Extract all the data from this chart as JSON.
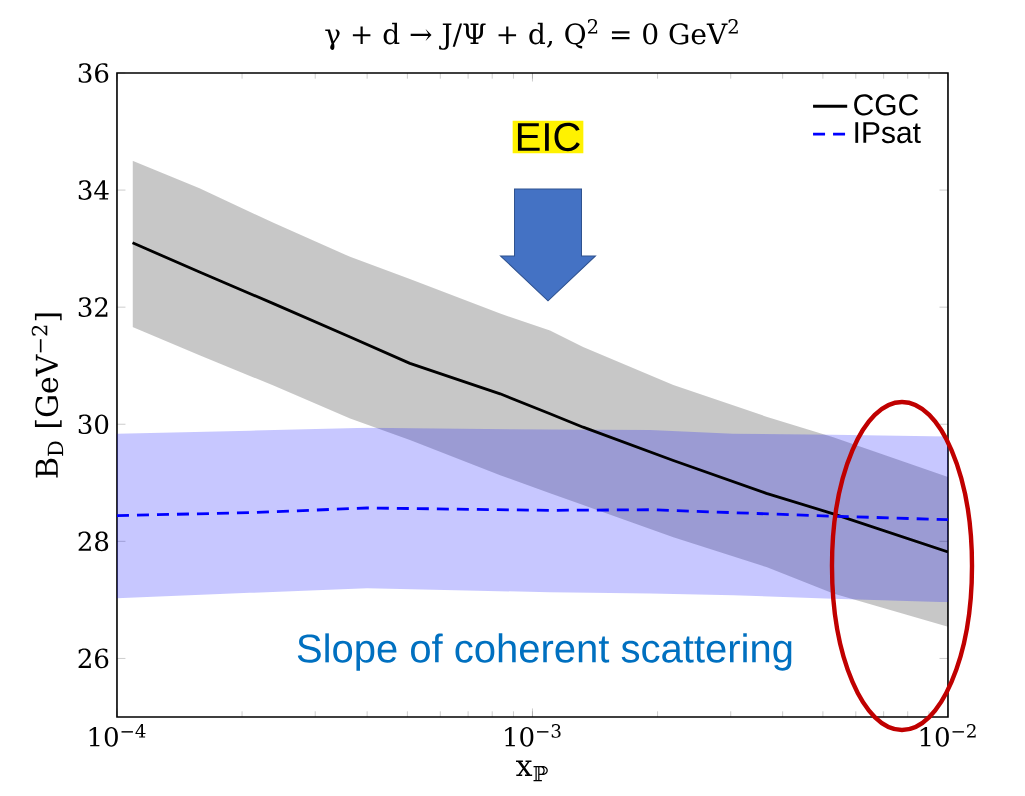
{
  "chart_data": {
    "type": "line",
    "title": "γ + d → J/Ψ + d, Q$^{2}$ = 0 GeV$^{2}$",
    "xlabel": "x$_{ℙ}$",
    "ylabel": "B$_{D}$ [GeV$^{−2}$]",
    "log": "x",
    "xlim": [
      0.0001,
      0.01
    ],
    "xticks": [
      {
        "value": 0.0001,
        "label": "10$^{−4}$"
      },
      {
        "value": 0.001,
        "label": "10$^{−3}$"
      },
      {
        "value": 0.01,
        "label": "10$^{−2}$"
      }
    ],
    "ylim": [
      25,
      36
    ],
    "yticks": [
      26,
      28,
      30,
      32,
      34,
      36
    ],
    "legend": "top right",
    "series": [
      {
        "name": "CGC",
        "color": "#000000",
        "line_style": "solid",
        "x": [
          0.000109,
          0.000158,
          0.000238,
          0.000364,
          0.000507,
          0.000836,
          0.001102,
          0.001324,
          0.002183,
          0.003656,
          0.005297,
          0.01
        ],
        "values": [
          33.1,
          32.6,
          32.06,
          31.49,
          31.04,
          30.52,
          30.18,
          29.95,
          29.38,
          28.82,
          28.47,
          27.82
        ],
        "lower": [
          31.66,
          31.18,
          30.66,
          30.1,
          29.73,
          29.13,
          28.82,
          28.62,
          28.07,
          27.56,
          27.11,
          26.54
        ],
        "upper": [
          34.5,
          34.03,
          33.44,
          32.86,
          32.48,
          31.89,
          31.6,
          31.32,
          30.67,
          30.13,
          29.78,
          29.1
        ]
      },
      {
        "name": "IPsat",
        "color": "#0000ff",
        "line_style": "dashed",
        "x": [
          0.0001,
          0.000209,
          0.0004,
          0.0011,
          0.00192,
          0.00304,
          0.00528,
          0.01
        ],
        "values": [
          28.44,
          28.49,
          28.57,
          28.53,
          28.54,
          28.49,
          28.43,
          28.37
        ],
        "lower": [
          27.03,
          27.12,
          27.2,
          27.13,
          27.11,
          27.08,
          27.02,
          26.96
        ],
        "upper": [
          29.84,
          29.89,
          29.94,
          29.91,
          29.9,
          29.84,
          29.82,
          29.79
        ]
      }
    ],
    "annotations": [
      "EIC",
      "Slope of coherent scattering"
    ]
  }
}
